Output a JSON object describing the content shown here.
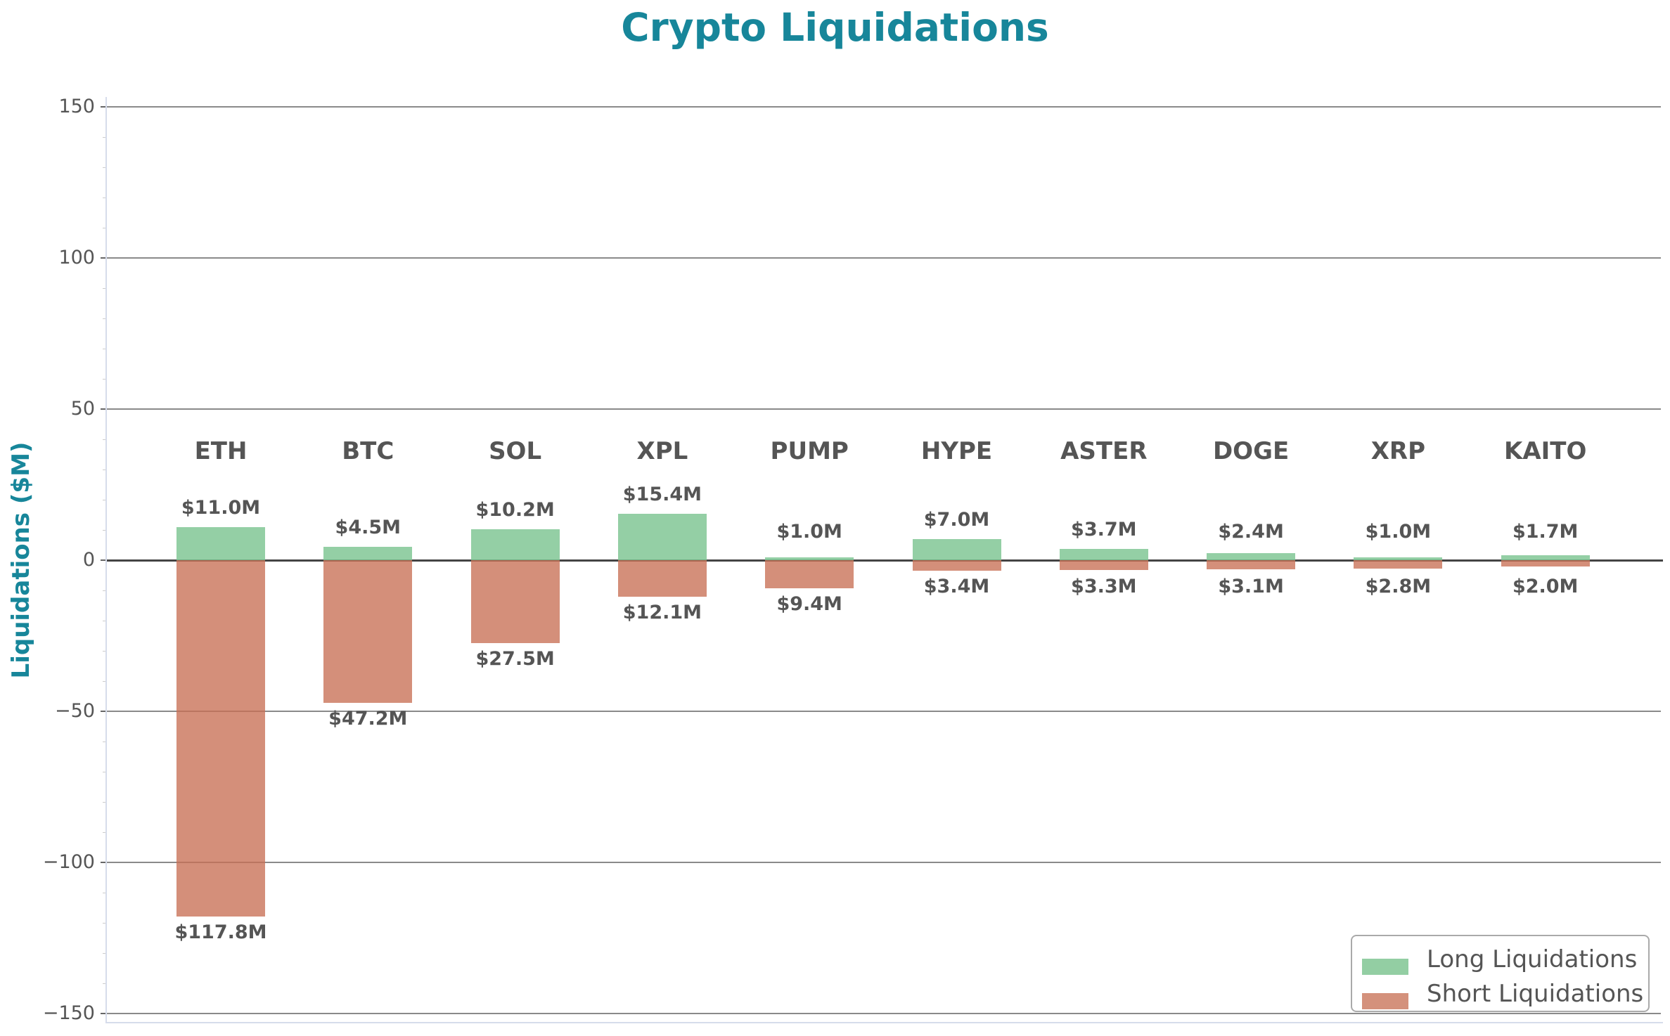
{
  "title": "Crypto Liquidations",
  "ylabel": "Liquidations ($M)",
  "yticks": [
    {
      "value": 150,
      "label": "150"
    },
    {
      "value": 100,
      "label": "100"
    },
    {
      "value": 50,
      "label": "50"
    },
    {
      "value": 0,
      "label": "0"
    },
    {
      "value": -50,
      "label": "−50"
    },
    {
      "value": -100,
      "label": "−100"
    },
    {
      "value": -150,
      "label": "−150"
    }
  ],
  "legend": {
    "long": {
      "label": "Long Liquidations",
      "color": "#93CEA3"
    },
    "short": {
      "label": "Short Liquidations",
      "color": "#D4917C"
    }
  },
  "colors": {
    "title": "#17869A",
    "text": "#555555",
    "long": "#93CEA3",
    "short": "#D4917C",
    "zero_line": "#444444"
  },
  "chart_data": {
    "type": "bar",
    "title": "Crypto Liquidations",
    "xlabel": "",
    "ylabel": "Liquidations ($M)",
    "ylim": [
      -150,
      150
    ],
    "grid": true,
    "legend_position": "lower right",
    "categories": [
      "ETH",
      "BTC",
      "SOL",
      "XPL",
      "PUMP",
      "HYPE",
      "ASTER",
      "DOGE",
      "XRP",
      "KAITO"
    ],
    "series": [
      {
        "name": "Long Liquidations",
        "values": [
          11.0,
          4.5,
          10.2,
          15.4,
          1.0,
          7.0,
          3.7,
          2.4,
          1.0,
          1.7
        ],
        "labels": [
          "$11.0M",
          "$4.5M",
          "$10.2M",
          "$15.4M",
          "$1.0M",
          "$7.0M",
          "$3.7M",
          "$2.4M",
          "$1.0M",
          "$1.7M"
        ]
      },
      {
        "name": "Short Liquidations",
        "values": [
          -117.8,
          -47.2,
          -27.5,
          -12.1,
          -9.4,
          -3.4,
          -3.3,
          -3.1,
          -2.8,
          -2.0
        ],
        "labels": [
          "$117.8M",
          "$47.2M",
          "$27.5M",
          "$12.1M",
          "$9.4M",
          "$3.4M",
          "$3.3M",
          "$3.1M",
          "$2.8M",
          "$2.0M"
        ]
      }
    ]
  }
}
